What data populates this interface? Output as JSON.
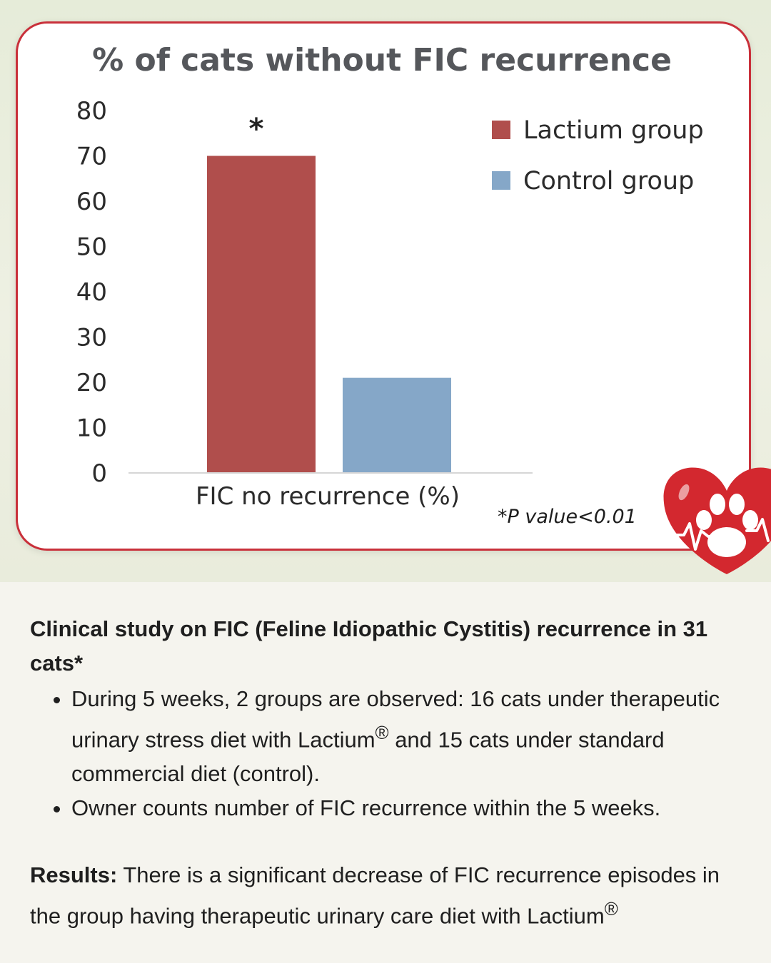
{
  "chart_data": {
    "type": "bar",
    "title": "% of cats without FIC recurrence",
    "categories": [
      "FIC no recurrence (%)"
    ],
    "series": [
      {
        "name": "Lactium group",
        "values": [
          70
        ],
        "color": "#b04e4c"
      },
      {
        "name": "Control group",
        "values": [
          21
        ],
        "color": "#85a7c8"
      }
    ],
    "ylim": [
      0,
      80
    ],
    "yticks": [
      0,
      10,
      20,
      30,
      40,
      50,
      60,
      70,
      80
    ],
    "xlabel": "",
    "ylabel": "",
    "grid": false,
    "legend": "top-right",
    "significance_marker": "*",
    "annotation": "*P value<0.01"
  },
  "logo": {
    "icon": "heart-paw-icon",
    "color": "#d3282f"
  },
  "study": {
    "heading": "Clinical study on FIC (Feline Idiopathic Cystitis) recurrence in 31 cats*",
    "bullets": [
      {
        "before": "During 5 weeks, 2 groups are observed: 16 cats under therapeutic urinary stress diet with Lactium",
        "sup": "®",
        "after": " and 15 cats under standard commercial diet (control)."
      },
      {
        "before": "Owner counts number of FIC recurrence within the 5 weeks.",
        "sup": "",
        "after": ""
      }
    ],
    "results_label": "Results:",
    "results_text": " There is a significant decrease of FIC recurrence episodes in the group having therapeutic urinary care diet with Lactium",
    "results_sup": "®"
  }
}
